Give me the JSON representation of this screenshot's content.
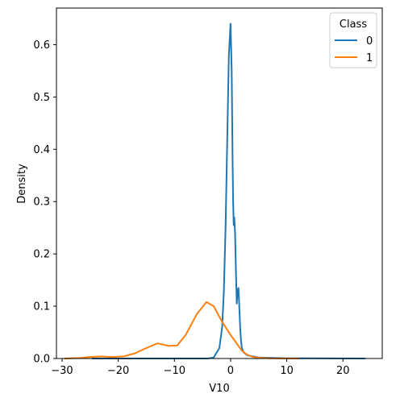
{
  "chart_data": {
    "type": "line",
    "title": "",
    "xlabel": "V10",
    "ylabel": "Density",
    "xlim": [
      -31,
      27
    ],
    "ylim": [
      0,
      0.67
    ],
    "xticks": [
      -30,
      -20,
      -10,
      0,
      10,
      20
    ],
    "xtick_labels": [
      "−30",
      "−20",
      "−10",
      "0",
      "10",
      "20"
    ],
    "yticks": [
      0.0,
      0.1,
      0.2,
      0.3,
      0.4,
      0.5,
      0.6
    ],
    "ytick_labels": [
      "0.0",
      "0.1",
      "0.2",
      "0.3",
      "0.4",
      "0.5",
      "0.6"
    ],
    "grid": false,
    "legend": {
      "title": "Class",
      "placement": "top-right"
    },
    "series": [
      {
        "name": "0",
        "color": "#1f77b4",
        "x": [
          -24.6,
          -15,
          -8,
          -4,
          -3,
          -2,
          -1.5,
          -1.2,
          -0.9,
          -0.6,
          -0.3,
          0,
          0.2,
          0.35,
          0.45,
          0.55,
          0.65,
          0.8,
          0.95,
          1.1,
          1.25,
          1.4,
          1.55,
          1.7,
          1.85,
          2.0,
          2.3,
          3.0,
          5.0,
          10.0,
          23.9
        ],
        "y": [
          0.0,
          0.0,
          0.0,
          0.0,
          0.002,
          0.02,
          0.06,
          0.13,
          0.25,
          0.42,
          0.58,
          0.64,
          0.55,
          0.38,
          0.3,
          0.255,
          0.27,
          0.24,
          0.17,
          0.105,
          0.13,
          0.135,
          0.1,
          0.06,
          0.035,
          0.02,
          0.012,
          0.006,
          0.002,
          0.0004,
          0.0
        ]
      },
      {
        "name": "1",
        "color": "#ff7f0e",
        "x": [
          -29.5,
          -27,
          -25,
          -23,
          -21,
          -19,
          -17,
          -15,
          -13,
          -11,
          -9.5,
          -8,
          -6,
          -4.3,
          -3,
          -1.5,
          0,
          1,
          2,
          3,
          4,
          5,
          7,
          10,
          12
        ],
        "y": [
          0.0,
          0.001,
          0.003,
          0.004,
          0.003,
          0.004,
          0.01,
          0.02,
          0.029,
          0.024,
          0.025,
          0.045,
          0.085,
          0.108,
          0.1,
          0.07,
          0.045,
          0.03,
          0.015,
          0.007,
          0.003,
          0.0015,
          0.0005,
          0.0001,
          0.0
        ]
      }
    ]
  }
}
